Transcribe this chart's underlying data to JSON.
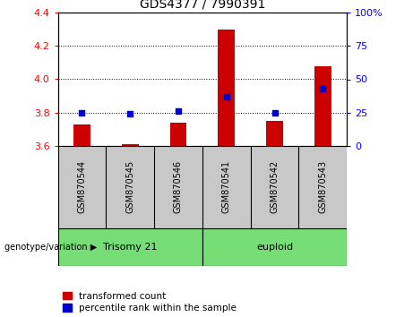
{
  "title": "GDS4377 / 7990391",
  "samples": [
    "GSM870544",
    "GSM870545",
    "GSM870546",
    "GSM870541",
    "GSM870542",
    "GSM870543"
  ],
  "red_bar_values": [
    3.73,
    3.61,
    3.74,
    4.3,
    3.75,
    4.08
  ],
  "blue_square_values": [
    25,
    24,
    26,
    37,
    25,
    43
  ],
  "ylim_left": [
    3.6,
    4.4
  ],
  "ylim_right": [
    0,
    100
  ],
  "left_ticks": [
    3.6,
    3.8,
    4.0,
    4.2,
    4.4
  ],
  "right_ticks": [
    0,
    25,
    50,
    75,
    100
  ],
  "right_tick_labels": [
    "0",
    "25",
    "50",
    "75",
    "100%"
  ],
  "bar_bottom": 3.6,
  "bar_color": "#CC0000",
  "square_color": "#0000CC",
  "bg_color": "#FFFFFF",
  "sample_area_color": "#C8C8C8",
  "group_area_color": "#77DD77",
  "legend_transformed": "transformed count",
  "legend_percentile": "percentile rank within the sample",
  "genotype_label": "genotype/variation"
}
